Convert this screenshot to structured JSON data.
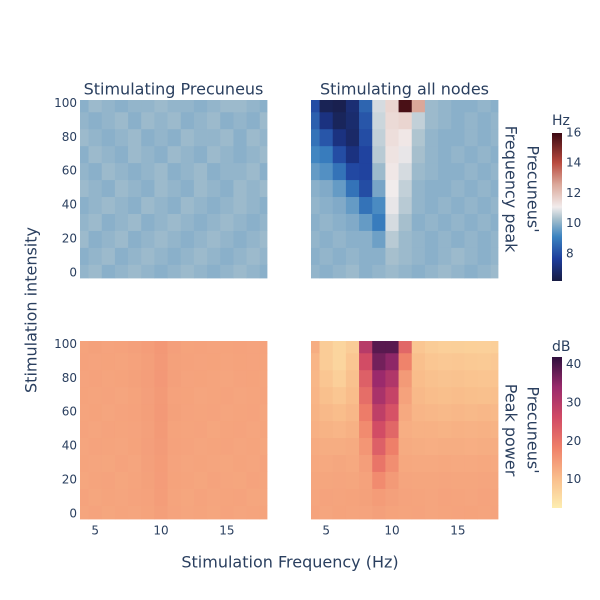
{
  "chart_data": {
    "type": "heatmap",
    "x_label": "Stimulation Frequency (Hz)",
    "y_label": "Stimulation intensity",
    "column_titles": [
      "Stimulating Precuneus",
      "Stimulating all nodes"
    ],
    "x": [
      4,
      5,
      6,
      7,
      8,
      9,
      10,
      11,
      12,
      13,
      14,
      15,
      16,
      17,
      18
    ],
    "y": [
      0,
      10,
      20,
      30,
      40,
      50,
      60,
      70,
      80,
      90,
      100
    ],
    "xlim": [
      3.85,
      18.05
    ],
    "ylim": [
      -3,
      102
    ],
    "xticks": [
      5,
      10,
      15
    ],
    "yticks": [
      0,
      20,
      40,
      60,
      80,
      100
    ],
    "rows": [
      {
        "title": [
          "Precuneus'",
          "Frequency peak"
        ],
        "colorbar": {
          "title": "Hz",
          "zlim": [
            6.2,
            16
          ],
          "ticks": [
            8,
            10,
            12,
            14,
            16
          ],
          "colorscale": [
            [
              0,
              "#181c43"
            ],
            [
              0.15,
              "#1d3d9c"
            ],
            [
              0.3,
              "#3b83c0"
            ],
            [
              0.42,
              "#a7c0cd"
            ],
            [
              0.5,
              "#f1ecec"
            ],
            [
              0.65,
              "#dba99b"
            ],
            [
              0.8,
              "#b94a3e"
            ],
            [
              1,
              "#3c0912"
            ]
          ]
        },
        "z": [
          [
            [
              10.1,
              10.2,
              10.0,
              10.1,
              10.2,
              10.1,
              10.0,
              10.1,
              10.2,
              10.1,
              10.0,
              10.1,
              10.2,
              10.1,
              10.0
            ],
            [
              10.0,
              10.1,
              10.2,
              10.0,
              10.1,
              10.2,
              10.1,
              10.0,
              10.1,
              10.2,
              10.1,
              10.0,
              10.1,
              10.2,
              10.1
            ],
            [
              10.2,
              10.0,
              10.1,
              10.2,
              10.0,
              10.1,
              10.2,
              10.1,
              10.0,
              10.1,
              10.2,
              10.1,
              10.0,
              10.1,
              10.2
            ],
            [
              10.1,
              10.2,
              10.0,
              10.1,
              10.2,
              10.0,
              10.1,
              10.2,
              10.1,
              10.0,
              10.1,
              10.2,
              10.1,
              10.0,
              10.1
            ],
            [
              10.0,
              10.1,
              10.2,
              10.1,
              10.0,
              10.2,
              10.1,
              10.0,
              10.2,
              10.1,
              10.0,
              10.1,
              10.2,
              10.1,
              10.0
            ],
            [
              10.2,
              10.1,
              10.0,
              10.2,
              10.1,
              10.0,
              10.2,
              10.1,
              10.0,
              10.2,
              10.1,
              10.0,
              10.2,
              10.1,
              10.2
            ],
            [
              10.1,
              10.0,
              10.2,
              10.1,
              10.0,
              10.1,
              10.2,
              10.0,
              10.1,
              10.2,
              10.0,
              10.1,
              10.1,
              10.2,
              10.0
            ],
            [
              10.0,
              10.2,
              10.1,
              10.0,
              10.2,
              10.1,
              10.0,
              10.2,
              10.1,
              10.0,
              10.2,
              10.1,
              10.0,
              10.1,
              10.2
            ],
            [
              10.2,
              10.1,
              10.0,
              10.1,
              10.2,
              10.0,
              10.1,
              10.0,
              10.2,
              10.1,
              10.1,
              10.2,
              10.0,
              10.2,
              10.1
            ],
            [
              10.1,
              10.0,
              10.1,
              10.2,
              10.0,
              10.2,
              10.1,
              10.2,
              10.0,
              10.1,
              10.2,
              10.0,
              10.1,
              10.0,
              10.2
            ],
            [
              10.0,
              10.2,
              10.1,
              10.0,
              10.1,
              10.1,
              10.2,
              10.1,
              10.1,
              10.0,
              10.1,
              10.2,
              10.2,
              10.1,
              10.0
            ]
          ],
          [
            [
              10.1,
              10.0,
              10.1,
              10.2,
              10.0,
              10.1,
              10.2,
              10.1,
              10.0,
              10.1,
              10.2,
              10.1,
              10.0,
              10.1,
              10.2
            ],
            [
              10.0,
              10.1,
              10.0,
              10.1,
              10.0,
              10.0,
              10.3,
              10.2,
              10.1,
              10.0,
              10.1,
              10.2,
              10.1,
              10.0,
              10.1
            ],
            [
              10.1,
              10.0,
              10.1,
              10.0,
              10.0,
              9.7,
              10.5,
              10.2,
              10.1,
              10.0,
              10.1,
              10.0,
              10.1,
              10.0,
              10.1
            ],
            [
              10.0,
              10.1,
              10.0,
              9.9,
              9.6,
              9.0,
              10.8,
              10.3,
              10.0,
              10.1,
              10.0,
              10.1,
              10.0,
              10.1,
              10.0
            ],
            [
              10.1,
              10.0,
              9.9,
              9.6,
              8.8,
              9.3,
              11.0,
              10.5,
              10.1,
              10.0,
              10.1,
              10.0,
              10.1,
              10.0,
              10.1
            ],
            [
              10.0,
              9.9,
              9.6,
              8.8,
              8.0,
              9.8,
              11.1,
              10.6,
              10.1,
              10.0,
              10.0,
              10.1,
              10.0,
              10.1,
              10.0
            ],
            [
              9.6,
              9.4,
              8.8,
              7.9,
              7.8,
              10.2,
              11.2,
              10.8,
              10.2,
              10.1,
              10.0,
              10.0,
              10.1,
              10.0,
              10.1
            ],
            [
              9.2,
              9.0,
              8.0,
              7.2,
              7.8,
              10.5,
              11.3,
              11.0,
              10.3,
              10.1,
              10.0,
              10.1,
              10.0,
              10.1,
              10.0
            ],
            [
              8.8,
              8.2,
              7.2,
              6.8,
              8.0,
              10.6,
              11.4,
              11.2,
              10.4,
              10.1,
              10.0,
              10.0,
              10.1,
              10.0,
              10.1
            ],
            [
              8.4,
              7.2,
              6.6,
              6.9,
              8.2,
              10.7,
              11.5,
              11.6,
              10.6,
              10.2,
              10.1,
              10.0,
              10.1,
              10.0,
              10.1
            ],
            [
              8.0,
              6.5,
              6.4,
              7.0,
              8.5,
              10.8,
              11.6,
              15.8,
              12.6,
              10.2,
              10.1,
              10.0,
              10.0,
              10.1,
              10.0
            ]
          ]
        ]
      },
      {
        "title": [
          "Precuneus'",
          "Peak power"
        ],
        "colorbar": {
          "title": "dB",
          "zlim": [
            2.6,
            42
          ],
          "ticks": [
            10,
            20,
            30,
            40
          ],
          "colorscale": [
            [
              0,
              "#fdedb0"
            ],
            [
              0.2,
              "#f9bd8b"
            ],
            [
              0.4,
              "#ef8069"
            ],
            [
              0.6,
              "#d14a65"
            ],
            [
              0.8,
              "#9a2a6c"
            ],
            [
              1,
              "#2f0f3d"
            ]
          ]
        },
        "z": [
          [
            [
              13.6,
              13.8,
              13.5,
              13.7,
              13.6,
              13.9,
              14.4,
              13.8,
              13.6,
              13.7,
              13.5,
              13.8,
              13.6,
              13.7,
              13.9
            ],
            [
              13.8,
              13.5,
              13.7,
              13.6,
              13.8,
              14.0,
              14.6,
              13.7,
              13.5,
              13.8,
              13.6,
              13.7,
              13.8,
              13.5,
              13.6
            ],
            [
              13.5,
              13.7,
              13.8,
              13.5,
              13.7,
              14.1,
              14.7,
              13.9,
              13.7,
              13.5,
              13.8,
              13.6,
              13.5,
              13.8,
              13.7
            ],
            [
              13.7,
              13.6,
              13.5,
              13.8,
              13.6,
              14.2,
              14.8,
              13.8,
              13.6,
              13.7,
              13.6,
              13.5,
              13.7,
              13.6,
              13.8
            ],
            [
              13.6,
              13.8,
              13.7,
              13.6,
              13.9,
              14.3,
              14.9,
              14.0,
              13.8,
              13.6,
              13.7,
              13.8,
              13.6,
              13.7,
              13.5
            ],
            [
              13.8,
              13.6,
              13.8,
              13.7,
              13.8,
              14.2,
              15.0,
              13.9,
              13.7,
              13.8,
              13.5,
              13.7,
              13.8,
              13.6,
              13.7
            ],
            [
              13.7,
              13.9,
              13.6,
              13.8,
              14.0,
              14.4,
              15.1,
              14.1,
              13.8,
              13.7,
              13.8,
              13.6,
              13.7,
              13.8,
              13.6
            ],
            [
              13.9,
              13.7,
              13.8,
              13.6,
              13.9,
              14.3,
              15.0,
              14.0,
              13.9,
              13.6,
              13.7,
              13.8,
              13.6,
              13.7,
              13.8
            ],
            [
              13.8,
              14.0,
              13.7,
              13.9,
              14.1,
              14.5,
              15.2,
              14.2,
              13.8,
              13.9,
              13.7,
              13.6,
              13.8,
              13.9,
              13.7
            ],
            [
              14.0,
              13.8,
              13.9,
              13.7,
              14.0,
              14.4,
              15.1,
              14.1,
              14.0,
              13.8,
              13.9,
              13.7,
              13.9,
              13.8,
              13.9
            ],
            [
              13.9,
              14.1,
              13.8,
              14.0,
              14.2,
              14.6,
              15.3,
              14.3,
              13.9,
              14.0,
              13.8,
              13.9,
              14.0,
              13.8,
              14.0
            ]
          ],
          [
            [
              13.8,
              13.6,
              13.9,
              13.7,
              13.8,
              14.2,
              13.9,
              13.7,
              13.8,
              13.6,
              13.7,
              13.8,
              13.9,
              13.7,
              13.8
            ],
            [
              13.6,
              13.8,
              13.7,
              13.9,
              14.1,
              14.8,
              14.2,
              13.8,
              13.7,
              13.6,
              13.8,
              13.7,
              13.6,
              13.8,
              13.7
            ],
            [
              13.5,
              13.4,
              13.6,
              13.5,
              14.0,
              17.0,
              15.0,
              13.6,
              13.4,
              13.5,
              13.6,
              13.4,
              13.5,
              13.6,
              13.5
            ],
            [
              13.2,
              13.0,
              13.3,
              13.1,
              14.5,
              20.0,
              16.5,
              13.2,
              13.0,
              13.1,
              13.2,
              13.0,
              13.1,
              13.2,
              13.0
            ],
            [
              12.8,
              12.5,
              12.6,
              12.8,
              15.5,
              23.0,
              18.5,
              12.8,
              12.5,
              12.4,
              12.6,
              12.5,
              12.4,
              12.6,
              12.5
            ],
            [
              12.2,
              11.8,
              11.5,
              12.0,
              17.0,
              26.0,
              22.0,
              12.4,
              12.0,
              12.0,
              11.8,
              12.0,
              11.9,
              12.0,
              11.8
            ],
            [
              11.8,
              11.0,
              10.5,
              11.2,
              19.0,
              29.0,
              25.0,
              13.0,
              11.5,
              11.2,
              11.0,
              11.2,
              11.0,
              11.2,
              11.0
            ],
            [
              11.5,
              10.0,
              9.0,
              10.5,
              21.0,
              32.0,
              28.0,
              14.0,
              11.0,
              10.5,
              10.2,
              10.4,
              10.2,
              10.0,
              10.2
            ],
            [
              11.2,
              9.0,
              7.5,
              9.8,
              23.0,
              34.0,
              31.0,
              15.0,
              10.5,
              9.8,
              9.5,
              9.6,
              9.4,
              9.2,
              9.4
            ],
            [
              11.5,
              8.0,
              6.5,
              9.0,
              26.0,
              37.0,
              35.0,
              18.0,
              10.0,
              9.0,
              8.6,
              8.8,
              8.5,
              8.4,
              8.6
            ],
            [
              12.5,
              8.0,
              6.5,
              8.0,
              30.0,
              39.0,
              39.0,
              22.0,
              9.0,
              8.0,
              7.5,
              7.6,
              7.4,
              7.3,
              7.5
            ]
          ]
        ]
      }
    ]
  }
}
